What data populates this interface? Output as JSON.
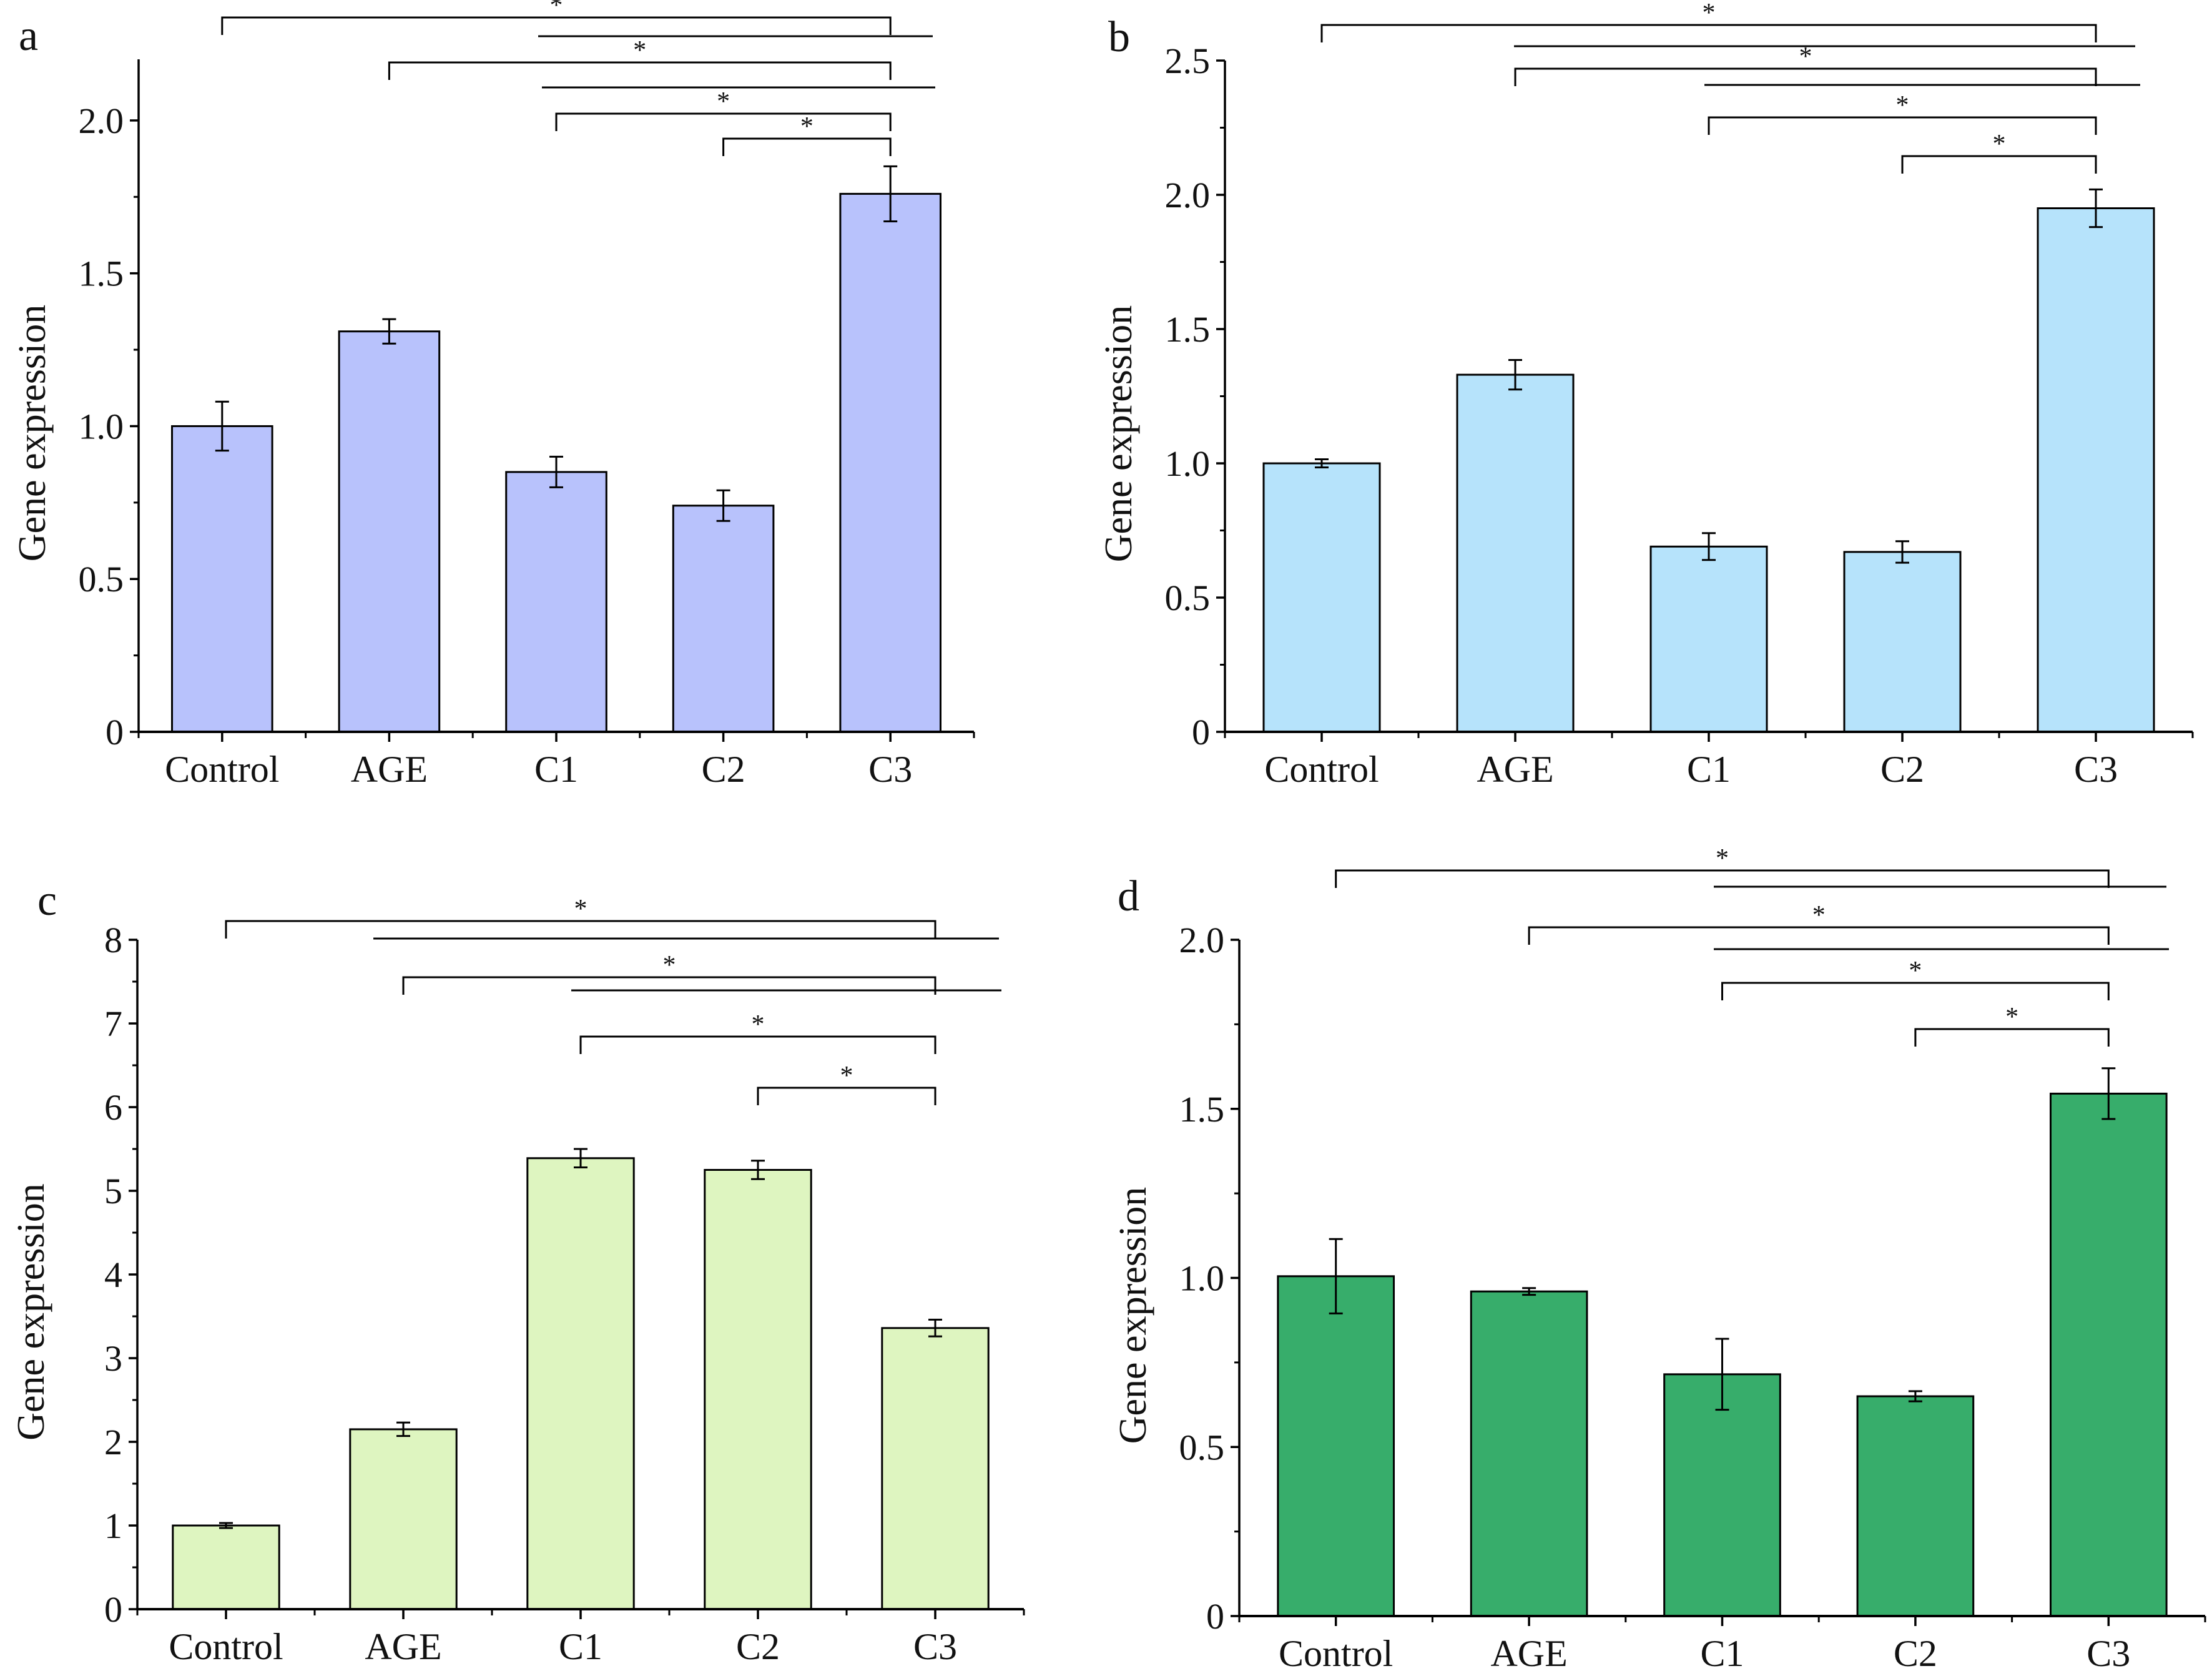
{
  "chart_data": [
    {
      "panel": "a",
      "type": "bar",
      "categories": [
        "Control",
        "AGE",
        "C1",
        "C2",
        "C3"
      ],
      "values": [
        1.0,
        1.31,
        0.85,
        0.74,
        1.76
      ],
      "errors": [
        0.08,
        0.04,
        0.05,
        0.05,
        0.09
      ],
      "ylabel": "Gene expression",
      "xlabel": "",
      "ylim": [
        0,
        2.2
      ],
      "yticks": [
        0,
        0.5,
        1.0,
        1.5,
        2.0
      ],
      "ytick_labels": [
        "0",
        "0.5",
        "1.0",
        "1.5",
        "2.0"
      ],
      "color": "#b8c2fc",
      "significance": [
        {
          "from": "Control",
          "to": "C3",
          "label": "*"
        },
        {
          "from": "AGE",
          "to": "C3",
          "label": "*"
        },
        {
          "from": "C1",
          "to": "C3",
          "label": "*"
        },
        {
          "from": "C2",
          "to": "C3",
          "label": "*"
        }
      ]
    },
    {
      "panel": "b",
      "type": "bar",
      "categories": [
        "Control",
        "AGE",
        "C1",
        "C2",
        "C3"
      ],
      "values": [
        1.0,
        1.33,
        0.69,
        0.67,
        1.95
      ],
      "errors": [
        0.015,
        0.055,
        0.05,
        0.04,
        0.07
      ],
      "ylabel": "Gene expression",
      "xlabel": "",
      "ylim": [
        0,
        2.5
      ],
      "yticks": [
        0,
        0.5,
        1.0,
        1.5,
        2.0,
        2.5
      ],
      "ytick_labels": [
        "0",
        "0.5",
        "1.0",
        "1.5",
        "2.0",
        "2.5"
      ],
      "color": "#b6e3fb",
      "significance": [
        {
          "from": "Control",
          "to": "C3",
          "label": "*"
        },
        {
          "from": "AGE",
          "to": "C3",
          "label": "*"
        },
        {
          "from": "C1",
          "to": "C3",
          "label": "*"
        },
        {
          "from": "C2",
          "to": "C3",
          "label": "*"
        }
      ]
    },
    {
      "panel": "c",
      "type": "bar",
      "categories": [
        "Control",
        "AGE",
        "C1",
        "C2",
        "C3"
      ],
      "values": [
        1.0,
        2.15,
        5.39,
        5.25,
        3.36
      ],
      "errors": [
        0.03,
        0.08,
        0.11,
        0.11,
        0.1
      ],
      "ylabel": "Gene expression",
      "xlabel": "",
      "ylim": [
        0,
        8
      ],
      "yticks": [
        0,
        1,
        2,
        3,
        4,
        5,
        6,
        7,
        8
      ],
      "ytick_labels": [
        "0",
        "1",
        "2",
        "3",
        "4",
        "5",
        "6",
        "7",
        "8"
      ],
      "color": "#def5c0",
      "significance": [
        {
          "from": "Control",
          "to": "C3",
          "label": "*"
        },
        {
          "from": "AGE",
          "to": "C3",
          "label": "*"
        },
        {
          "from": "C1",
          "to": "C3",
          "label": "*"
        },
        {
          "from": "C2",
          "to": "C3",
          "label": "*"
        }
      ]
    },
    {
      "panel": "d",
      "type": "bar",
      "categories": [
        "Control",
        "AGE",
        "C1",
        "C2",
        "C3"
      ],
      "values": [
        1.005,
        0.96,
        0.715,
        0.65,
        1.545
      ],
      "errors": [
        0.11,
        0.01,
        0.105,
        0.015,
        0.075
      ],
      "ylabel": "Gene expression",
      "xlabel": "",
      "ylim": [
        0,
        2.0
      ],
      "yticks": [
        0,
        0.5,
        1.0,
        1.5,
        2.0
      ],
      "ytick_labels": [
        "0",
        "0.5",
        "1.0",
        "1.5",
        "2.0"
      ],
      "color": "#37ad6b",
      "significance": [
        {
          "from": "Control",
          "to": "C3",
          "label": "*"
        },
        {
          "from": "AGE",
          "to": "C3",
          "label": "*"
        },
        {
          "from": "C1",
          "to": "C3",
          "label": "*"
        },
        {
          "from": "C2",
          "to": "C3",
          "label": "*"
        }
      ]
    }
  ]
}
